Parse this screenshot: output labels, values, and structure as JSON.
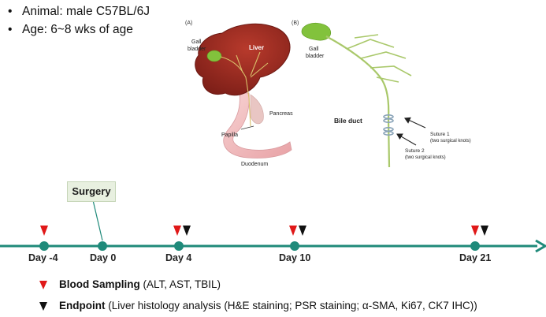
{
  "bullets": [
    "Animal: male C57BL/6J",
    "Age: 6~8 wks of age"
  ],
  "panel_a": {
    "tag": "(A)",
    "gall_bladder_1": "Gall",
    "gall_bladder_2": "bladder",
    "liver": "Liver",
    "pancreas": "Pancreas",
    "papilla": "Papilla",
    "duodenum": "Duodenum"
  },
  "panel_b": {
    "tag": "(B)",
    "gall_bladder_1": "Gall",
    "gall_bladder_2": "bladder",
    "bile_duct": "Bile duct",
    "suture1_title": "Suture 1",
    "suture1_note": "(two surgical knots)",
    "suture2_title": "Suture 2",
    "suture2_note": "(two surgical knots)"
  },
  "surgery_label": "Surgery",
  "timeline": {
    "days": [
      "Day -4",
      "Day 0",
      "Day 4",
      "Day 10",
      "Day 21"
    ],
    "blood_sampling_days": [
      "Day -4",
      "Day 4",
      "Day 10",
      "Day 21"
    ],
    "endpoint_days": [
      "Day 4",
      "Day 10",
      "Day 21"
    ]
  },
  "legend": {
    "blood_title": "Blood Sampling",
    "blood_detail": "(ALT, AST, TBIL)",
    "endpoint_title": "Endpoint",
    "endpoint_detail": "(Liver histology analysis (H&E staining; PSR staining; α-SMA, Ki67, CK7 IHC))"
  },
  "colors": {
    "timeline": "#1f8a7a",
    "liver": "#9a2a22",
    "gallbladder": "#82c23c",
    "duodenum": "#f0b8b8",
    "blood_marker": "#e01818",
    "endpoint_marker": "#111111"
  }
}
